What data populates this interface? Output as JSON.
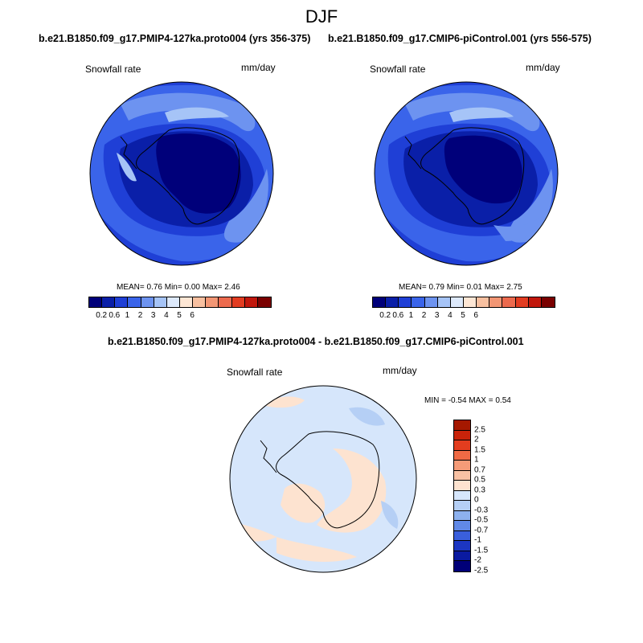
{
  "figure": {
    "season": "DJF",
    "panel1": {
      "title": "b.e21.B1850.f09_g17.PMIP4-127ka.proto004 (yrs 356-375)",
      "variable": "Snowfall rate",
      "units": "mm/day",
      "stats": "MEAN=  0.76  Min=  0.00  Max=  2.46"
    },
    "panel2": {
      "title": "b.e21.B1850.f09_g17.CMIP6-piControl.001 (yrs 556-575)",
      "variable": "Snowfall rate",
      "units": "mm/day",
      "stats": "MEAN=  0.79  Min=  0.01  Max=  2.75"
    },
    "diff": {
      "title": "b.e21.B1850.f09_g17.PMIP4-127ka.proto004 - b.e21.B1850.f09_g17.CMIP6-piControl.001",
      "variable": "Snowfall rate",
      "units": "mm/day",
      "stats": "MIN = -0.54 MAX =  0.54"
    }
  },
  "abs_colorbar": {
    "colors": [
      "#00007a",
      "#0a1fa8",
      "#1f3fd6",
      "#3a64ea",
      "#6d93f0",
      "#a6c4f7",
      "#dde9fb",
      "#fde6d4",
      "#f8c0a0",
      "#f29674",
      "#ec6a4e",
      "#e23c21",
      "#c1170c",
      "#7a0000"
    ],
    "labels": [
      "0.2",
      "0.6",
      "1",
      "2",
      "3",
      "4",
      "5",
      "6"
    ]
  },
  "diff_colorbar": {
    "colors": [
      "#a51800",
      "#c9230a",
      "#e33d1f",
      "#ef6a45",
      "#f59b78",
      "#f8c1a4",
      "#fde3d0",
      "#d6e6fb",
      "#b5cff5",
      "#8db1ee",
      "#6189e7",
      "#3a5fdc",
      "#1c36c2",
      "#0a1aa0",
      "#000078"
    ],
    "labels": [
      "2.5",
      "2",
      "1.5",
      "1",
      "0.7",
      "0.5",
      "0.3",
      "0",
      "-0.3",
      "-0.5",
      "-0.7",
      "-1",
      "-1.5",
      "-2",
      "-2.5"
    ]
  }
}
